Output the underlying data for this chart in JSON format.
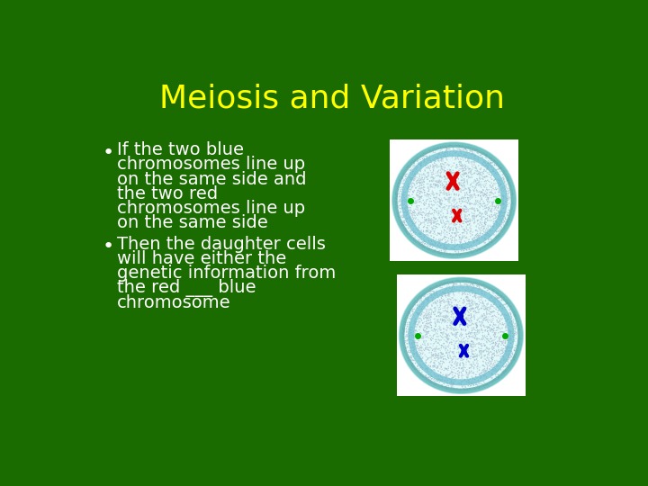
{
  "background_color": "#1a6b00",
  "title": "Meiosis and Variation",
  "title_color": "#ffff00",
  "title_fontsize": 26,
  "bullet1_lines": [
    "If the two blue",
    "chromosomes line up",
    "on the same side and",
    "the two red",
    "chromosomes line up",
    "on the same side"
  ],
  "bullet2_lines": [
    "Then the daughter cells",
    "will have either the",
    "genetic information from",
    "the red ___ blue",
    "chromosome"
  ],
  "text_color": "#ffffff",
  "text_fontsize": 14,
  "cell1_chrom_color": "#dd0000",
  "cell2_chrom_color": "#0000cc",
  "green_dot_color": "#00aa00",
  "white_bg": "#ffffff"
}
